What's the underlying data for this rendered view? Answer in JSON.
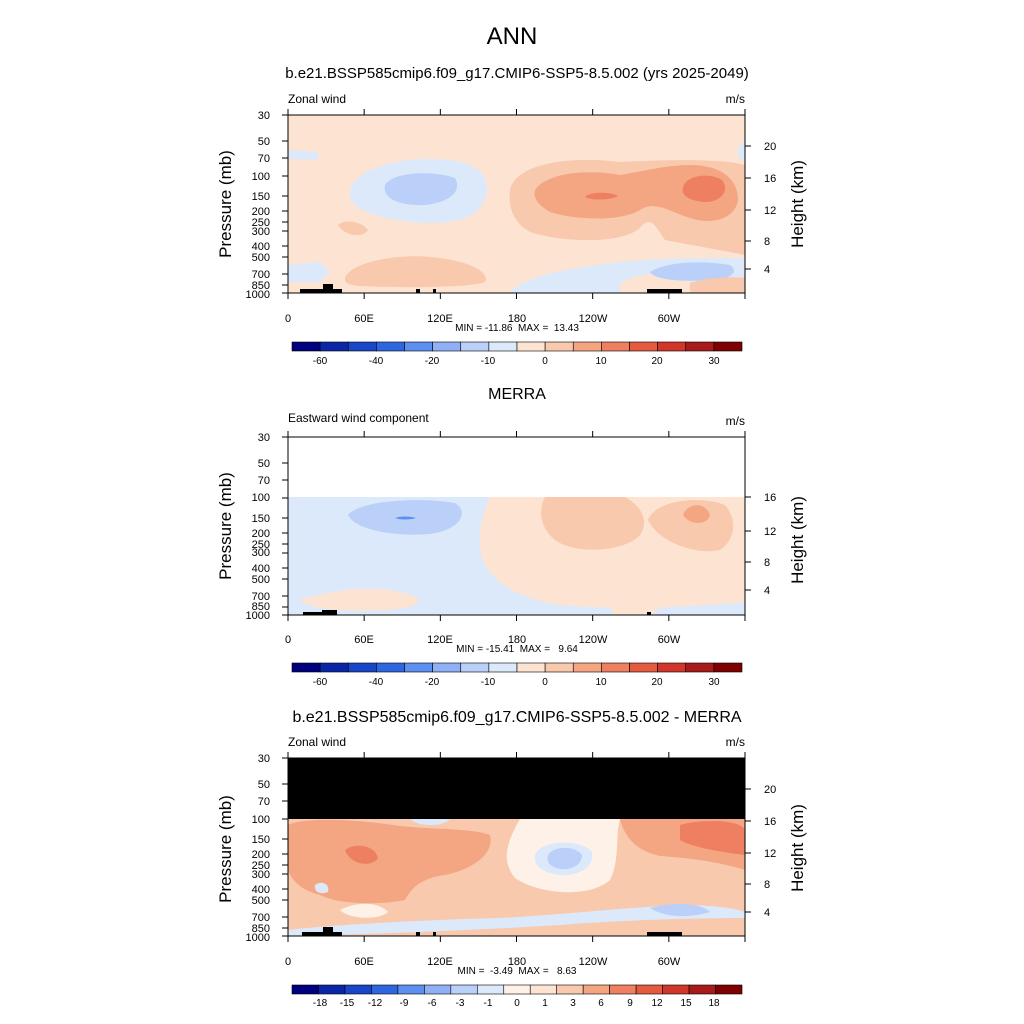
{
  "figure": {
    "title": "ANN"
  },
  "colors": {
    "abs_scale": [
      "#00007f",
      "#0a26a6",
      "#1846c6",
      "#2e66e0",
      "#5c8ff0",
      "#8fb0f4",
      "#bad0f8",
      "#dce9fb",
      "#fde4d2",
      "#f9c9ae",
      "#f4a582",
      "#ee8061",
      "#e55b3f",
      "#d0362a",
      "#a81b1b",
      "#7f0000"
    ],
    "diff_scale": [
      "#00007f",
      "#0a26a6",
      "#1846c6",
      "#2e66e0",
      "#5c8ff0",
      "#8fb0f4",
      "#bad0f8",
      "#dce9fb",
      "#fef2e8",
      "#fde4d2",
      "#f9c9ae",
      "#f4a582",
      "#ee8061",
      "#e55b3f",
      "#d0362a",
      "#a81b1b",
      "#7f0000"
    ],
    "missing": "#000000",
    "topography": "#000000"
  },
  "chart_data": [
    {
      "type": "heatmap",
      "subtitle": "b.e21.BSSP585cmip6.f09_g17.CMIP6-SSP5-8.5.002 (yrs 2025-2049)",
      "left_label": "Zonal wind",
      "right_label": "m/s",
      "ylabel": "Pressure (mb)",
      "ylabel_right": "Height (km)",
      "xlim": [
        0,
        360
      ],
      "ylim": [
        1000,
        30
      ],
      "x_ticks": [
        "0",
        "60E",
        "120E",
        "180",
        "120W",
        "60W"
      ],
      "y_ticks": [
        "30",
        "50",
        "70",
        "100",
        "150",
        "200",
        "250",
        "300",
        "400",
        "500",
        "700",
        "850",
        "1000"
      ],
      "height_ticks": [
        "20",
        "16",
        "12",
        "8",
        "4"
      ],
      "stats": "MIN = -11.86  MAX =  13.43",
      "colorbar_labels": [
        "-60",
        "-40",
        "-20",
        "-10",
        "0",
        "10",
        "20",
        "30"
      ],
      "top_pressure": 30,
      "summary": {
        "min": -11.86,
        "max": 13.43
      }
    },
    {
      "type": "heatmap",
      "subtitle": "MERRA",
      "left_label": "Eastward wind component",
      "right_label": "m/s",
      "ylabel": "Pressure (mb)",
      "ylabel_right": "Height (km)",
      "xlim": [
        0,
        360
      ],
      "ylim": [
        1000,
        30
      ],
      "x_ticks": [
        "0",
        "60E",
        "120E",
        "180",
        "120W",
        "60W"
      ],
      "y_ticks": [
        "30",
        "50",
        "70",
        "100",
        "150",
        "200",
        "250",
        "300",
        "400",
        "500",
        "700",
        "850",
        "1000"
      ],
      "height_ticks": [
        "16",
        "12",
        "8",
        "4"
      ],
      "stats": "MIN = -15.41  MAX =   9.64",
      "colorbar_labels": [
        "-60",
        "-40",
        "-20",
        "-10",
        "0",
        "10",
        "20",
        "30"
      ],
      "top_pressure": 100,
      "summary": {
        "min": -15.41,
        "max": 9.64
      }
    },
    {
      "type": "heatmap",
      "subtitle": "b.e21.BSSP585cmip6.f09_g17.CMIP6-SSP5-8.5.002 - MERRA",
      "left_label": "Zonal wind",
      "right_label": "m/s",
      "ylabel": "Pressure (mb)",
      "ylabel_right": "Height (km)",
      "xlim": [
        0,
        360
      ],
      "ylim": [
        1000,
        30
      ],
      "x_ticks": [
        "0",
        "60E",
        "120E",
        "180",
        "120W",
        "60W"
      ],
      "y_ticks": [
        "30",
        "50",
        "70",
        "100",
        "150",
        "200",
        "250",
        "300",
        "400",
        "500",
        "700",
        "850",
        "1000"
      ],
      "height_ticks": [
        "20",
        "16",
        "12",
        "8",
        "4"
      ],
      "stats": "MIN =  -3.49  MAX =   8.63",
      "colorbar_labels": [
        "-18",
        "-15",
        "-12",
        "-9",
        "-6",
        "-3",
        "-1",
        "0",
        "1",
        "3",
        "6",
        "9",
        "12",
        "15",
        "18"
      ],
      "top_pressure": 100,
      "summary": {
        "min": -3.49,
        "max": 8.63
      }
    }
  ]
}
